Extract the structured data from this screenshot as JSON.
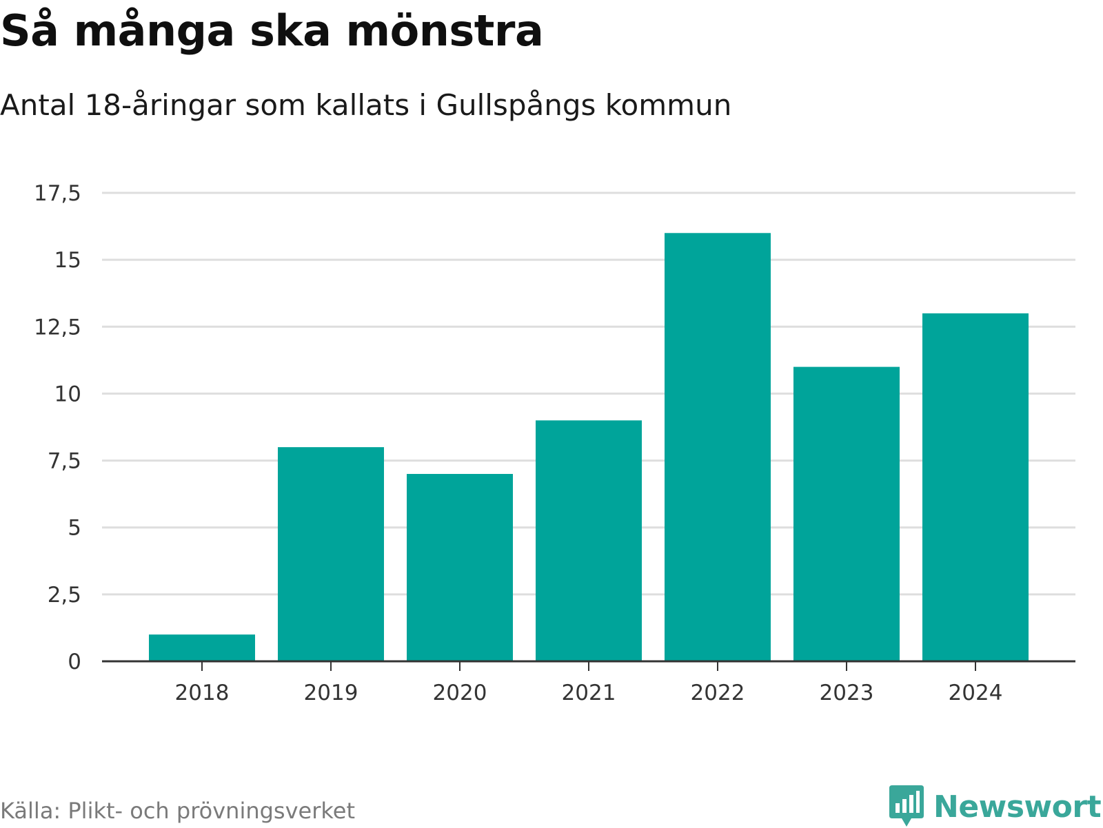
{
  "header": {
    "title": "Så många ska mönstra",
    "subtitle": "Antal 18-åringar som kallats i Gullspångs kommun"
  },
  "footer": {
    "source": "Källa: Plikt- och prövningsverket",
    "brand": "Newsworthy",
    "brand_icon": "newsworthy-logo-icon"
  },
  "colors": {
    "bar": "#00a49a",
    "brand": "#3aa79a",
    "gridline": "#dedede",
    "axis": "#333333"
  },
  "chart_data": {
    "type": "bar",
    "title": "Så många ska mönstra",
    "subtitle": "Antal 18-åringar som kallats i Gullspångs kommun",
    "xlabel": "",
    "ylabel": "",
    "categories": [
      "2018",
      "2019",
      "2020",
      "2021",
      "2022",
      "2023",
      "2024"
    ],
    "values": [
      1,
      8,
      7,
      9,
      16,
      11,
      13
    ],
    "ylim": [
      0,
      17.5
    ],
    "yticks": [
      0,
      2.5,
      5,
      7.5,
      10,
      12.5,
      15,
      17.5
    ],
    "ytick_labels": [
      "0",
      "2,5",
      "5",
      "7,5",
      "10",
      "12,5",
      "15",
      "17,5"
    ],
    "grid": true,
    "legend": "none"
  }
}
